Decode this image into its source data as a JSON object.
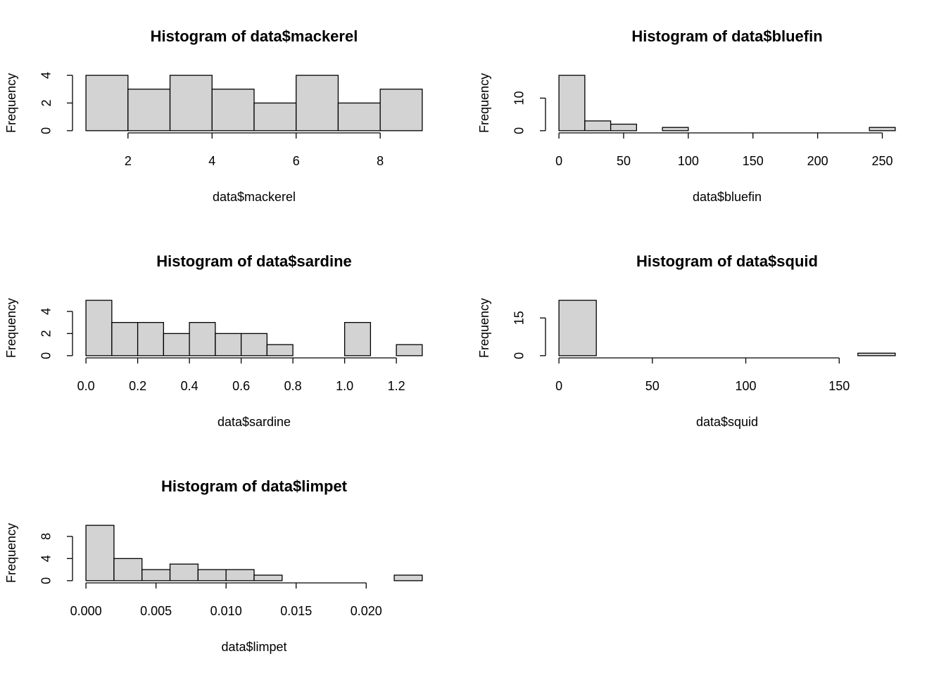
{
  "chart_data": [
    {
      "type": "histogram",
      "title": "Histogram of data$mackerel",
      "xlabel": "data$mackerel",
      "ylabel": "Frequency",
      "bins": [
        1,
        2,
        3,
        4,
        5,
        6,
        7,
        8,
        9
      ],
      "counts": [
        4,
        3,
        4,
        3,
        2,
        4,
        2,
        3
      ],
      "xlim": [
        1,
        9
      ],
      "ylim": [
        0,
        4
      ],
      "xticks": [
        2,
        4,
        6,
        8
      ],
      "yticks": [
        0,
        2,
        4
      ],
      "color": "#d3d3d3"
    },
    {
      "type": "histogram",
      "title": "Histogram of data$bluefin",
      "xlabel": "data$bluefin",
      "ylabel": "Frequency",
      "bins": [
        0,
        20,
        40,
        60,
        80,
        100,
        120,
        140,
        160,
        180,
        200,
        220,
        240,
        260
      ],
      "counts": [
        17,
        3,
        2,
        0,
        1,
        0,
        0,
        0,
        0,
        0,
        0,
        0,
        1
      ],
      "xlim": [
        0,
        260
      ],
      "ylim": [
        0,
        17
      ],
      "xticks": [
        0,
        50,
        100,
        150,
        200,
        250
      ],
      "yticks": [
        0,
        10
      ],
      "color": "#d3d3d3"
    },
    {
      "type": "histogram",
      "title": "Histogram of data$sardine",
      "xlabel": "data$sardine",
      "ylabel": "Frequency",
      "bins": [
        0,
        0.1,
        0.2,
        0.3,
        0.4,
        0.5,
        0.6,
        0.7,
        0.8,
        0.9,
        1.0,
        1.1,
        1.2,
        1.3
      ],
      "counts": [
        5,
        3,
        3,
        2,
        3,
        2,
        2,
        1,
        0,
        0,
        3,
        0,
        1
      ],
      "xlim": [
        0,
        1.3
      ],
      "ylim": [
        0,
        5
      ],
      "xticks": [
        {
          "value": 0,
          "label": "0.0"
        },
        0.2,
        0.4,
        0.6,
        0.8,
        {
          "value": 1,
          "label": "1.0"
        },
        1.2
      ],
      "yticks": [
        0,
        2,
        4
      ],
      "color": "#d3d3d3"
    },
    {
      "type": "histogram",
      "title": "Histogram of data$squid",
      "xlabel": "data$squid",
      "ylabel": "Frequency",
      "bins": [
        0,
        20,
        40,
        60,
        80,
        100,
        120,
        140,
        160,
        180
      ],
      "counts": [
        22,
        0,
        0,
        0,
        0,
        0,
        0,
        0,
        1
      ],
      "xlim": [
        0,
        180
      ],
      "ylim": [
        0,
        22
      ],
      "xticks": [
        0,
        50,
        100,
        150
      ],
      "yticks": [
        0,
        15
      ],
      "color": "#d3d3d3"
    },
    {
      "type": "histogram",
      "title": "Histogram of data$limpet",
      "xlabel": "data$limpet",
      "ylabel": "Frequency",
      "bins": [
        0,
        0.002,
        0.004,
        0.006,
        0.008,
        0.01,
        0.012,
        0.014,
        0.016,
        0.018,
        0.02,
        0.022,
        0.024
      ],
      "counts": [
        10,
        4,
        2,
        3,
        2,
        2,
        1,
        0,
        0,
        0,
        0,
        1
      ],
      "xlim": [
        0,
        0.024
      ],
      "ylim": [
        0,
        10
      ],
      "xticks": [
        {
          "value": 0,
          "label": "0.000"
        },
        {
          "value": 0.005,
          "label": "0.005"
        },
        {
          "value": 0.01,
          "label": "0.010"
        },
        {
          "value": 0.015,
          "label": "0.015"
        },
        {
          "value": 0.02,
          "label": "0.020"
        }
      ],
      "yticks": [
        0,
        4,
        8
      ],
      "color": "#d3d3d3"
    }
  ]
}
